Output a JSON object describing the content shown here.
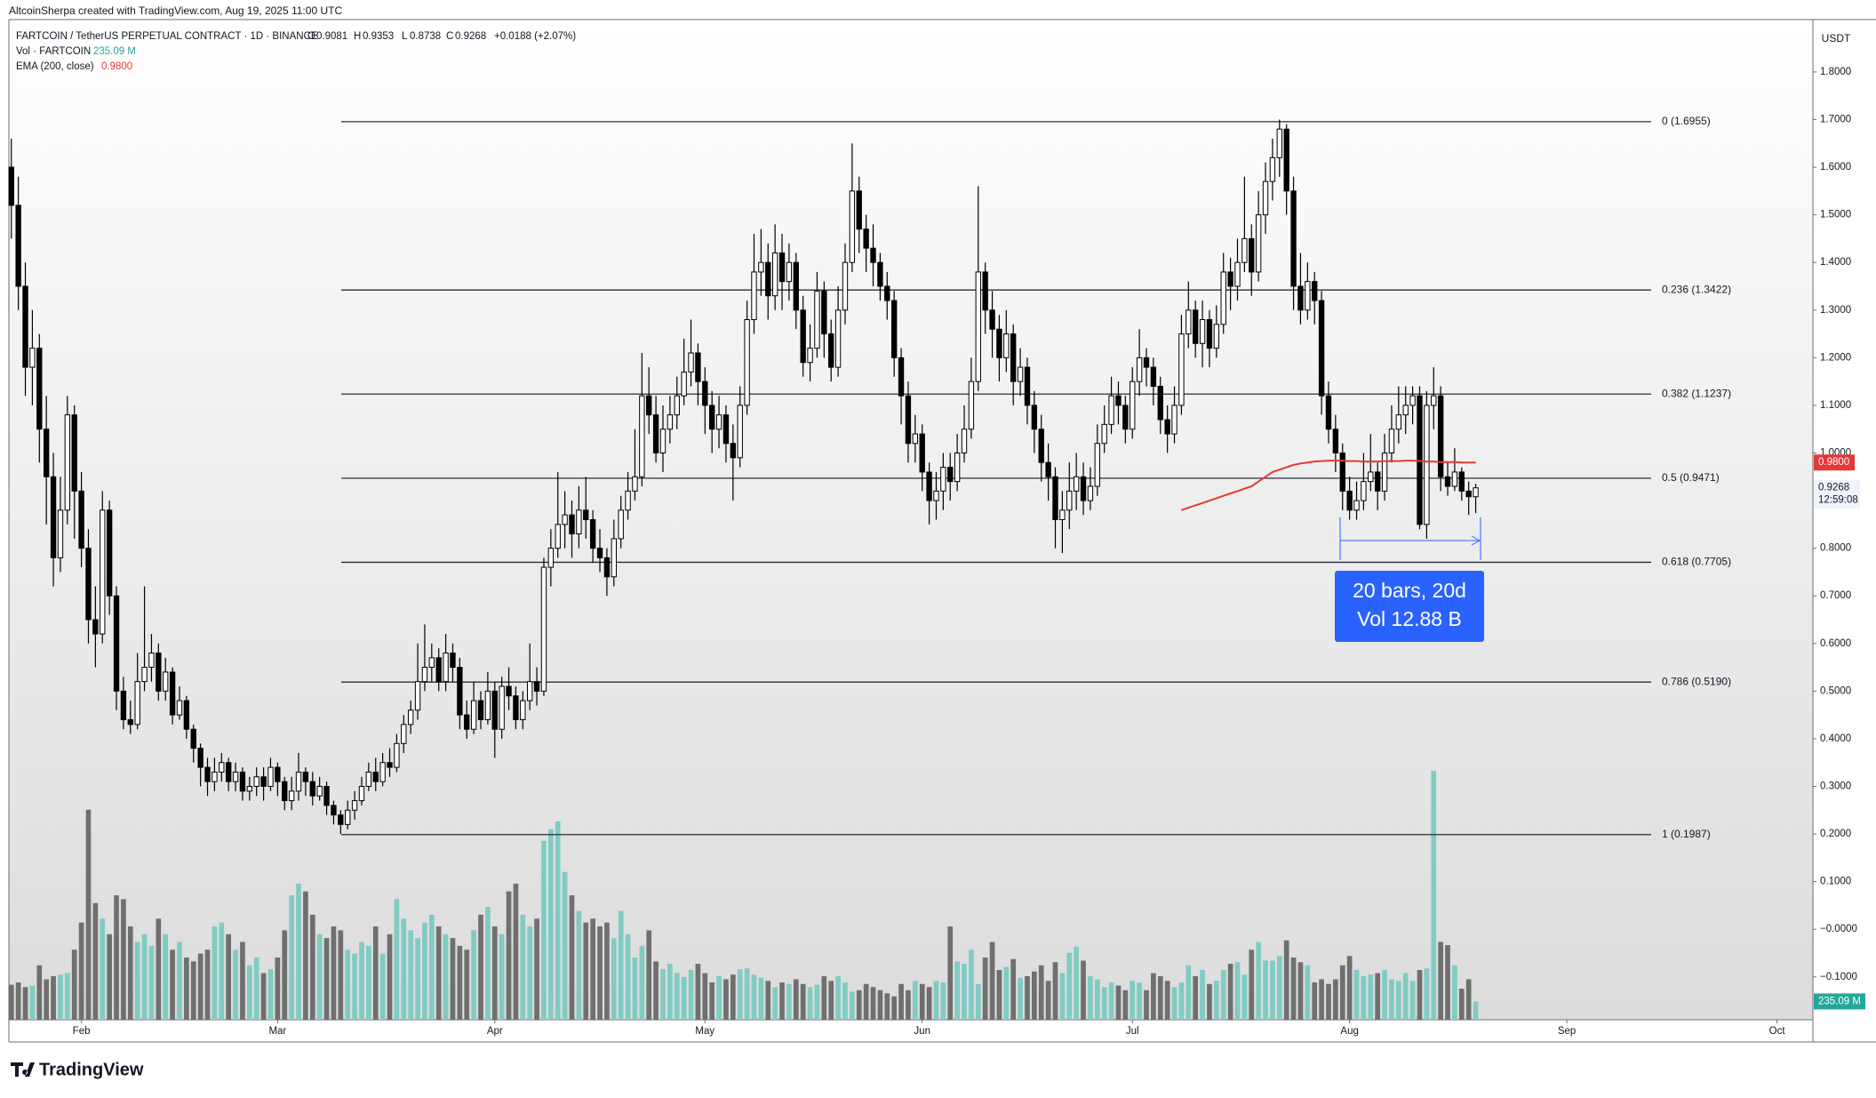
{
  "chart_data": {
    "type": "candlestick",
    "header": "AltcoinSherpa created with TradingView.com, Aug 19, 2025 11:00 UTC",
    "symbol": "FARTCOIN / TetherUS PERPETUAL CONTRACT · 1D · BINANCE",
    "ohlc_labels": [
      "O",
      "H",
      "L",
      "C"
    ],
    "change": "+0.0188 (+2.07%)",
    "currency": "USDT",
    "countdown": "12:59:08",
    "brand": "TradingView",
    "up_color": "#ffffff",
    "down_color": "#000000",
    "wick_color": "#000000",
    "open": [
      1.6,
      1.52,
      1.35,
      1.18,
      1.22,
      1.05,
      0.95,
      0.78,
      0.88,
      1.08,
      0.92,
      0.8,
      0.65,
      0.62,
      0.88,
      0.7,
      0.5,
      0.44,
      0.43,
      0.52,
      0.55,
      0.58,
      0.5,
      0.54,
      0.45,
      0.48,
      0.42,
      0.38,
      0.34,
      0.31,
      0.33,
      0.35,
      0.31,
      0.33,
      0.29,
      0.3,
      0.32,
      0.3,
      0.34,
      0.31,
      0.27,
      0.29,
      0.33,
      0.31,
      0.28,
      0.3,
      0.26,
      0.24,
      0.22,
      0.25,
      0.27,
      0.3,
      0.33,
      0.31,
      0.35,
      0.34,
      0.39,
      0.43,
      0.46,
      0.52,
      0.55,
      0.57,
      0.52,
      0.58,
      0.55,
      0.45,
      0.42,
      0.48,
      0.44,
      0.5,
      0.42,
      0.51,
      0.49,
      0.44,
      0.48,
      0.52,
      0.5,
      0.76,
      0.8,
      0.85,
      0.87,
      0.83,
      0.88,
      0.86,
      0.8,
      0.78,
      0.74,
      0.82,
      0.88,
      0.92,
      0.95,
      1.12,
      1.08,
      1.0,
      1.05,
      1.08,
      1.12,
      1.17,
      1.21,
      1.15,
      1.1,
      1.05,
      1.08,
      1.02,
      0.99,
      1.1,
      1.28,
      1.38,
      1.4,
      1.33,
      1.42,
      1.36,
      1.4,
      1.3,
      1.19,
      1.22,
      1.34,
      1.25,
      1.18,
      1.3,
      1.4,
      1.55,
      1.47,
      1.43,
      1.4,
      1.35,
      1.32,
      1.2,
      1.12,
      1.02,
      1.04,
      0.96,
      0.9,
      0.92,
      0.97,
      0.94,
      1.0,
      1.05,
      1.15,
      1.38,
      1.3,
      1.26,
      1.2,
      1.25,
      1.15,
      1.18,
      1.1,
      1.05,
      0.98,
      0.95,
      0.86,
      0.88,
      0.92,
      0.95,
      0.9,
      0.93,
      1.02,
      1.06,
      1.12,
      1.1,
      1.05,
      1.15,
      1.2,
      1.18,
      1.14,
      1.07,
      1.04,
      1.1,
      1.25,
      1.3,
      1.23,
      1.28,
      1.22,
      1.27,
      1.38,
      1.35,
      1.4,
      1.45,
      1.38,
      1.5,
      1.57,
      1.62,
      1.68,
      1.55,
      1.35,
      1.3,
      1.36,
      1.32,
      1.12,
      1.05,
      1.0,
      0.92,
      0.88,
      0.9,
      0.94,
      0.96,
      0.92,
      1.0,
      1.05,
      1.08,
      1.1,
      1.12,
      0.85,
      1.1,
      1.12,
      0.95,
      0.93,
      0.96,
      0.92,
      0.9081
    ],
    "high": [
      1.66,
      1.58,
      1.4,
      1.3,
      1.25,
      1.12,
      1.0,
      0.95,
      1.12,
      1.1,
      0.96,
      0.84,
      0.72,
      0.92,
      0.9,
      0.72,
      0.53,
      0.48,
      0.58,
      0.72,
      0.62,
      0.6,
      0.57,
      0.55,
      0.51,
      0.49,
      0.43,
      0.39,
      0.36,
      0.36,
      0.37,
      0.36,
      0.35,
      0.34,
      0.32,
      0.34,
      0.34,
      0.36,
      0.35,
      0.32,
      0.32,
      0.37,
      0.34,
      0.33,
      0.32,
      0.31,
      0.27,
      0.25,
      0.27,
      0.29,
      0.32,
      0.35,
      0.36,
      0.37,
      0.38,
      0.41,
      0.45,
      0.48,
      0.6,
      0.64,
      0.6,
      0.59,
      0.62,
      0.6,
      0.57,
      0.48,
      0.52,
      0.5,
      0.54,
      0.52,
      0.53,
      0.55,
      0.51,
      0.5,
      0.6,
      0.55,
      0.78,
      0.84,
      0.96,
      0.92,
      0.9,
      0.93,
      0.95,
      0.88,
      0.84,
      0.8,
      0.86,
      0.91,
      0.96,
      1.05,
      1.21,
      1.18,
      1.12,
      1.1,
      1.12,
      1.16,
      1.24,
      1.28,
      1.23,
      1.18,
      1.13,
      1.12,
      1.1,
      1.06,
      1.14,
      1.32,
      1.46,
      1.47,
      1.44,
      1.48,
      1.46,
      1.44,
      1.42,
      1.33,
      1.27,
      1.38,
      1.36,
      1.28,
      1.35,
      1.44,
      1.65,
      1.58,
      1.5,
      1.48,
      1.42,
      1.38,
      1.34,
      1.22,
      1.15,
      1.08,
      1.06,
      0.98,
      0.96,
      1.0,
      1.0,
      1.04,
      1.1,
      1.2,
      1.56,
      1.4,
      1.34,
      1.29,
      1.3,
      1.27,
      1.22,
      1.2,
      1.13,
      1.08,
      1.02,
      0.97,
      0.92,
      0.98,
      1.0,
      0.98,
      0.97,
      1.06,
      1.1,
      1.16,
      1.15,
      1.12,
      1.18,
      1.26,
      1.22,
      1.2,
      1.16,
      1.1,
      1.14,
      1.29,
      1.36,
      1.32,
      1.32,
      1.3,
      1.31,
      1.42,
      1.41,
      1.45,
      1.58,
      1.48,
      1.55,
      1.61,
      1.66,
      1.7,
      1.69,
      1.58,
      1.42,
      1.4,
      1.38,
      1.34,
      1.15,
      1.08,
      1.02,
      0.95,
      0.94,
      1.0,
      1.04,
      0.98,
      1.04,
      1.1,
      1.14,
      1.14,
      1.14,
      1.14,
      1.13,
      1.18,
      1.14,
      0.98,
      1.01,
      0.97,
      0.94,
      0.9353
    ],
    "low": [
      1.45,
      1.3,
      1.12,
      1.1,
      0.98,
      0.85,
      0.72,
      0.75,
      0.85,
      0.82,
      0.76,
      0.6,
      0.55,
      0.6,
      0.66,
      0.46,
      0.42,
      0.41,
      0.42,
      0.5,
      0.52,
      0.48,
      0.48,
      0.43,
      0.44,
      0.4,
      0.35,
      0.3,
      0.28,
      0.29,
      0.31,
      0.29,
      0.29,
      0.27,
      0.27,
      0.28,
      0.27,
      0.29,
      0.28,
      0.25,
      0.25,
      0.27,
      0.28,
      0.26,
      0.27,
      0.24,
      0.22,
      0.2,
      0.21,
      0.23,
      0.26,
      0.29,
      0.29,
      0.3,
      0.32,
      0.33,
      0.37,
      0.41,
      0.44,
      0.5,
      0.52,
      0.5,
      0.5,
      0.52,
      0.42,
      0.4,
      0.41,
      0.42,
      0.43,
      0.36,
      0.4,
      0.46,
      0.42,
      0.42,
      0.46,
      0.47,
      0.49,
      0.72,
      0.78,
      0.8,
      0.78,
      0.8,
      0.82,
      0.77,
      0.75,
      0.7,
      0.72,
      0.8,
      0.86,
      0.9,
      0.93,
      1.04,
      0.98,
      0.96,
      1.02,
      1.05,
      1.1,
      1.14,
      1.1,
      1.04,
      1.0,
      1.01,
      0.98,
      0.9,
      0.97,
      1.08,
      1.25,
      1.33,
      1.28,
      1.3,
      1.3,
      1.32,
      1.26,
      1.16,
      1.15,
      1.2,
      1.2,
      1.15,
      1.16,
      1.27,
      1.38,
      1.42,
      1.38,
      1.35,
      1.32,
      1.28,
      1.16,
      1.06,
      0.98,
      0.98,
      0.92,
      0.85,
      0.86,
      0.88,
      0.9,
      0.92,
      0.98,
      1.03,
      1.13,
      1.25,
      1.2,
      1.15,
      1.17,
      1.1,
      1.12,
      1.06,
      1.0,
      0.94,
      0.9,
      0.8,
      0.79,
      0.84,
      0.88,
      0.87,
      0.88,
      0.91,
      1.0,
      1.04,
      1.06,
      1.02,
      1.03,
      1.12,
      1.14,
      1.1,
      1.04,
      1.0,
      1.02,
      1.08,
      1.22,
      1.2,
      1.18,
      1.18,
      1.2,
      1.25,
      1.3,
      1.32,
      1.38,
      1.33,
      1.36,
      1.46,
      1.53,
      1.58,
      1.5,
      1.3,
      1.27,
      1.28,
      1.27,
      1.08,
      1.02,
      0.96,
      0.88,
      0.86,
      0.86,
      0.88,
      0.92,
      0.88,
      0.9,
      0.98,
      1.02,
      1.04,
      1.06,
      0.84,
      0.82,
      1.05,
      0.92,
      0.91,
      0.92,
      0.9,
      0.87,
      0.8738
    ],
    "close": [
      1.52,
      1.35,
      1.18,
      1.22,
      1.05,
      0.95,
      0.78,
      0.88,
      1.08,
      0.92,
      0.8,
      0.65,
      0.62,
      0.88,
      0.7,
      0.5,
      0.44,
      0.43,
      0.52,
      0.55,
      0.58,
      0.5,
      0.54,
      0.45,
      0.48,
      0.42,
      0.38,
      0.34,
      0.31,
      0.33,
      0.35,
      0.31,
      0.33,
      0.29,
      0.3,
      0.32,
      0.3,
      0.34,
      0.31,
      0.27,
      0.29,
      0.33,
      0.31,
      0.28,
      0.3,
      0.26,
      0.24,
      0.22,
      0.25,
      0.27,
      0.3,
      0.33,
      0.31,
      0.35,
      0.34,
      0.39,
      0.43,
      0.46,
      0.52,
      0.55,
      0.57,
      0.52,
      0.58,
      0.55,
      0.45,
      0.42,
      0.48,
      0.44,
      0.5,
      0.42,
      0.51,
      0.49,
      0.44,
      0.48,
      0.52,
      0.5,
      0.76,
      0.8,
      0.85,
      0.87,
      0.83,
      0.88,
      0.86,
      0.8,
      0.78,
      0.74,
      0.82,
      0.88,
      0.92,
      0.95,
      1.12,
      1.08,
      1.0,
      1.05,
      1.08,
      1.12,
      1.17,
      1.21,
      1.15,
      1.1,
      1.05,
      1.08,
      1.02,
      0.99,
      1.1,
      1.28,
      1.38,
      1.4,
      1.33,
      1.42,
      1.36,
      1.4,
      1.3,
      1.19,
      1.22,
      1.34,
      1.25,
      1.18,
      1.3,
      1.4,
      1.55,
      1.47,
      1.43,
      1.4,
      1.35,
      1.32,
      1.2,
      1.12,
      1.02,
      1.04,
      0.96,
      0.9,
      0.92,
      0.97,
      0.94,
      1.0,
      1.05,
      1.15,
      1.38,
      1.3,
      1.26,
      1.2,
      1.25,
      1.15,
      1.18,
      1.1,
      1.05,
      0.98,
      0.95,
      0.86,
      0.88,
      0.92,
      0.95,
      0.9,
      0.93,
      1.02,
      1.06,
      1.12,
      1.1,
      1.05,
      1.15,
      1.2,
      1.18,
      1.14,
      1.07,
      1.04,
      1.1,
      1.25,
      1.3,
      1.23,
      1.28,
      1.22,
      1.27,
      1.38,
      1.35,
      1.4,
      1.45,
      1.38,
      1.5,
      1.57,
      1.62,
      1.68,
      1.55,
      1.35,
      1.3,
      1.36,
      1.32,
      1.12,
      1.05,
      1.0,
      0.92,
      0.88,
      0.9,
      0.94,
      0.96,
      0.92,
      1.0,
      1.05,
      1.08,
      1.1,
      1.12,
      0.85,
      1.1,
      1.12,
      0.95,
      0.93,
      0.96,
      0.92,
      0.9081,
      0.9268
    ],
    "volume": {
      "name": "Vol · FARTCOIN",
      "value_label": "235.09 M",
      "up_color": "#80cbc4",
      "down_color": "#6f6f6f",
      "values": [
        450,
        480,
        420,
        440,
        700,
        520,
        560,
        580,
        600,
        900,
        1250,
        2700,
        1500,
        1300,
        1100,
        1600,
        1550,
        1200,
        1000,
        1100,
        950,
        1300,
        1100,
        900,
        1000,
        800,
        750,
        850,
        900,
        1200,
        1250,
        1100,
        900,
        1000,
        700,
        800,
        600,
        650,
        800,
        1150,
        1600,
        1750,
        1650,
        1350,
        1100,
        1050,
        1200,
        1150,
        900,
        850,
        1000,
        950,
        1200,
        850,
        1100,
        1550,
        1300,
        1150,
        1050,
        1250,
        1350,
        1200,
        1100,
        1050,
        950,
        900,
        1150,
        1350,
        1450,
        1200,
        1100,
        1650,
        1750,
        1350,
        1200,
        1300,
        2300,
        2450,
        2550,
        1900,
        1600,
        1400,
        1250,
        1300,
        1200,
        1250,
        1050,
        1400,
        1100,
        800,
        950,
        1150,
        750,
        650,
        720,
        600,
        550,
        640,
        720,
        600,
        480,
        560,
        520,
        580,
        650,
        660,
        580,
        540,
        500,
        420,
        480,
        460,
        520,
        460,
        420,
        450,
        560,
        500,
        560,
        480,
        360,
        380,
        460,
        420,
        380,
        340,
        300,
        460,
        380,
        500,
        460,
        420,
        500,
        480,
        1200,
        750,
        720,
        900,
        460,
        800,
        1000,
        640,
        680,
        780,
        540,
        560,
        620,
        700,
        500,
        740,
        600,
        860,
        940,
        760,
        560,
        520,
        420,
        480,
        440,
        380,
        500,
        480,
        380,
        600,
        560,
        500,
        420,
        480,
        700,
        560,
        640,
        460,
        500,
        640,
        720,
        740,
        580,
        900,
        1000,
        760,
        760,
        820,
        1020,
        800,
        740,
        700,
        480,
        520,
        460,
        520,
        700,
        820,
        640,
        560,
        580,
        600,
        640,
        520,
        500,
        600,
        500,
        640,
        660,
        3200,
        1000,
        960,
        700,
        400,
        520,
        235.09
      ]
    },
    "ema": {
      "name": "EMA (200, close)",
      "value_label": "0.9800",
      "color": "#e53935",
      "values": [
        null,
        null,
        null,
        null,
        null,
        null,
        null,
        null,
        null,
        null,
        null,
        null,
        null,
        null,
        null,
        null,
        null,
        null,
        null,
        null,
        null,
        null,
        null,
        null,
        null,
        null,
        null,
        null,
        null,
        null,
        null,
        null,
        null,
        null,
        null,
        null,
        null,
        null,
        null,
        null,
        null,
        null,
        null,
        null,
        null,
        null,
        null,
        null,
        null,
        null,
        null,
        null,
        null,
        null,
        null,
        null,
        null,
        null,
        null,
        null,
        null,
        null,
        null,
        null,
        null,
        null,
        null,
        null,
        null,
        null,
        null,
        null,
        null,
        null,
        null,
        null,
        null,
        null,
        null,
        null,
        null,
        null,
        null,
        null,
        null,
        null,
        null,
        null,
        null,
        null,
        null,
        null,
        null,
        null,
        null,
        null,
        null,
        null,
        null,
        null,
        null,
        null,
        null,
        null,
        null,
        null,
        null,
        null,
        null,
        null,
        null,
        null,
        null,
        null,
        null,
        null,
        null,
        null,
        null,
        null,
        null,
        null,
        null,
        null,
        null,
        null,
        null,
        null,
        null,
        null,
        null,
        null,
        null,
        null,
        null,
        null,
        null,
        null,
        null,
        null,
        null,
        null,
        null,
        null,
        null,
        null,
        null,
        null,
        null,
        null,
        null,
        null,
        null,
        null,
        null,
        null,
        null,
        null,
        null,
        null,
        null,
        null,
        null,
        null,
        null,
        null,
        null,
        0.88,
        0.885,
        0.89,
        0.895,
        0.9,
        0.905,
        0.91,
        0.915,
        0.92,
        0.925,
        0.93,
        0.94,
        0.95,
        0.96,
        0.965,
        0.97,
        0.975,
        0.978,
        0.98,
        0.982,
        0.983,
        0.984,
        0.984,
        0.984,
        0.983,
        0.983,
        0.982,
        0.982,
        0.982,
        0.983,
        0.983,
        0.983,
        0.984,
        0.984,
        0.983,
        0.982,
        0.982,
        0.981,
        0.981,
        0.981,
        0.98,
        0.98,
        0.98
      ]
    },
    "fib_levels": [
      {
        "value": 1.6955,
        "label": "0 (1.6955)"
      },
      {
        "value": 1.3422,
        "label": "0.236 (1.3422)"
      },
      {
        "value": 1.1237,
        "label": "0.382 (1.1237)"
      },
      {
        "value": 0.9471,
        "label": "0.5 (0.9471)"
      },
      {
        "value": 0.7705,
        "label": "0.618 (0.7705)"
      },
      {
        "value": 0.519,
        "label": "0.786 (0.5190)"
      },
      {
        "value": 0.1987,
        "label": "1 (0.1987)"
      }
    ],
    "measure": {
      "bars_label": "20 bars, 20d",
      "volume_label": "Vol 12.88 B",
      "color": "#2962ff"
    },
    "ylim": [
      -0.19,
      1.91
    ],
    "yticks": [
      {
        "value": 1.8,
        "label": "1.8000"
      },
      {
        "value": 1.7,
        "label": "1.7000"
      },
      {
        "value": 1.6,
        "label": "1.6000"
      },
      {
        "value": 1.5,
        "label": "1.5000"
      },
      {
        "value": 1.4,
        "label": "1.4000"
      },
      {
        "value": 1.3,
        "label": "1.3000"
      },
      {
        "value": 1.2,
        "label": "1.2000"
      },
      {
        "value": 1.1,
        "label": "1.1000"
      },
      {
        "value": 1.0,
        "label": "1.0000"
      },
      {
        "value": 0.8,
        "label": "0.8000"
      },
      {
        "value": 0.7,
        "label": "0.7000"
      },
      {
        "value": 0.6,
        "label": "0.6000"
      },
      {
        "value": 0.5,
        "label": "0.5000"
      },
      {
        "value": 0.4,
        "label": "0.4000"
      },
      {
        "value": 0.3,
        "label": "0.3000"
      },
      {
        "value": 0.2,
        "label": "0.2000"
      },
      {
        "value": 0.1,
        "label": "0.1000"
      },
      {
        "value": 0,
        "label": "−0.0000"
      },
      {
        "value": -0.1,
        "label": "−0.1000"
      }
    ],
    "xlim": [
      -0.35,
      257
    ],
    "xticks": [
      {
        "value": 10,
        "label": "Feb"
      },
      {
        "value": 38,
        "label": "Mar"
      },
      {
        "value": 69,
        "label": "Apr"
      },
      {
        "value": 99,
        "label": "May"
      },
      {
        "value": 130,
        "label": "Jun"
      },
      {
        "value": 160,
        "label": "Jul"
      },
      {
        "value": 191,
        "label": "Aug"
      },
      {
        "value": 222,
        "label": "Sep"
      },
      {
        "value": 252,
        "label": "Oct"
      }
    ]
  }
}
